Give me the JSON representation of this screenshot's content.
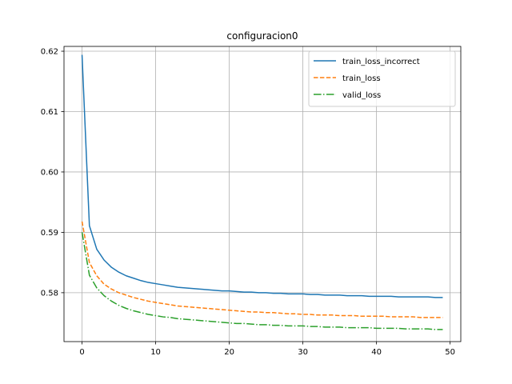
{
  "chart_data": {
    "type": "line",
    "title": "configuracion0",
    "xlabel": "",
    "ylabel": "",
    "xlim": [
      -2.45,
      51.45
    ],
    "ylim": [
      0.5719,
      0.6208
    ],
    "xticks": [
      0,
      10,
      20,
      30,
      40,
      50
    ],
    "yticks": [
      0.58,
      0.59,
      0.6,
      0.61,
      0.62
    ],
    "xtick_labels": [
      "0",
      "10",
      "20",
      "30",
      "40",
      "50"
    ],
    "ytick_labels": [
      "0.58",
      "0.59",
      "0.60",
      "0.61",
      "0.62"
    ],
    "grid": true,
    "legend_position": "top-right",
    "series": [
      {
        "name": "train_loss_incorrect",
        "color": "#1f77b4",
        "linestyle": "solid",
        "x": [
          0,
          1,
          2,
          3,
          4,
          5,
          6,
          7,
          8,
          9,
          10,
          11,
          12,
          13,
          14,
          15,
          16,
          17,
          18,
          19,
          20,
          21,
          22,
          23,
          24,
          25,
          26,
          27,
          28,
          29,
          30,
          31,
          32,
          33,
          34,
          35,
          36,
          37,
          38,
          39,
          40,
          41,
          42,
          43,
          44,
          45,
          46,
          47,
          48,
          49
        ],
        "values": [
          0.6194,
          0.5911,
          0.5872,
          0.5854,
          0.5842,
          0.5834,
          0.5828,
          0.5824,
          0.582,
          0.5817,
          0.5815,
          0.5813,
          0.5811,
          0.5809,
          0.5808,
          0.5807,
          0.5806,
          0.5805,
          0.5804,
          0.5803,
          0.5803,
          0.5802,
          0.5801,
          0.5801,
          0.58,
          0.58,
          0.5799,
          0.5799,
          0.5798,
          0.5798,
          0.5798,
          0.5797,
          0.5797,
          0.5796,
          0.5796,
          0.5796,
          0.5795,
          0.5795,
          0.5795,
          0.5794,
          0.5794,
          0.5794,
          0.5794,
          0.5793,
          0.5793,
          0.5793,
          0.5793,
          0.5793,
          0.5792,
          0.5792
        ]
      },
      {
        "name": "train_loss",
        "color": "#ff7f0e",
        "linestyle": "dashed",
        "x": [
          0,
          1,
          2,
          3,
          4,
          5,
          6,
          7,
          8,
          9,
          10,
          11,
          12,
          13,
          14,
          15,
          16,
          17,
          18,
          19,
          20,
          21,
          22,
          23,
          24,
          25,
          26,
          27,
          28,
          29,
          30,
          31,
          32,
          33,
          34,
          35,
          36,
          37,
          38,
          39,
          40,
          41,
          42,
          43,
          44,
          45,
          46,
          47,
          48,
          49
        ],
        "values": [
          0.5918,
          0.585,
          0.5828,
          0.5814,
          0.5806,
          0.58,
          0.5796,
          0.5792,
          0.5789,
          0.5786,
          0.5784,
          0.5782,
          0.578,
          0.5778,
          0.5777,
          0.5776,
          0.5775,
          0.5774,
          0.5773,
          0.5772,
          0.5771,
          0.577,
          0.5769,
          0.5768,
          0.5768,
          0.5767,
          0.5767,
          0.5766,
          0.5765,
          0.5765,
          0.5764,
          0.5764,
          0.5763,
          0.5763,
          0.5763,
          0.5762,
          0.5762,
          0.5762,
          0.5761,
          0.5761,
          0.5761,
          0.5761,
          0.576,
          0.576,
          0.576,
          0.576,
          0.5759,
          0.5759,
          0.5759,
          0.5759
        ]
      },
      {
        "name": "valid_loss",
        "color": "#2ca02c",
        "linestyle": "dashdot",
        "x": [
          0,
          1,
          2,
          3,
          4,
          5,
          6,
          7,
          8,
          9,
          10,
          11,
          12,
          13,
          14,
          15,
          16,
          17,
          18,
          19,
          20,
          21,
          22,
          23,
          24,
          25,
          26,
          27,
          28,
          29,
          30,
          31,
          32,
          33,
          34,
          35,
          36,
          37,
          38,
          39,
          40,
          41,
          42,
          43,
          44,
          45,
          46,
          47,
          48,
          49
        ],
        "values": [
          0.59,
          0.5829,
          0.5808,
          0.5795,
          0.5786,
          0.5779,
          0.5774,
          0.577,
          0.5767,
          0.5764,
          0.5762,
          0.576,
          0.5759,
          0.5757,
          0.5756,
          0.5755,
          0.5754,
          0.5753,
          0.5752,
          0.5751,
          0.575,
          0.5749,
          0.5749,
          0.5748,
          0.5747,
          0.5747,
          0.5746,
          0.5746,
          0.5745,
          0.5745,
          0.5745,
          0.5744,
          0.5744,
          0.5743,
          0.5743,
          0.5743,
          0.5742,
          0.5742,
          0.5742,
          0.5742,
          0.5741,
          0.5741,
          0.5741,
          0.5741,
          0.574,
          0.574,
          0.574,
          0.574,
          0.5739,
          0.5739
        ]
      }
    ]
  }
}
